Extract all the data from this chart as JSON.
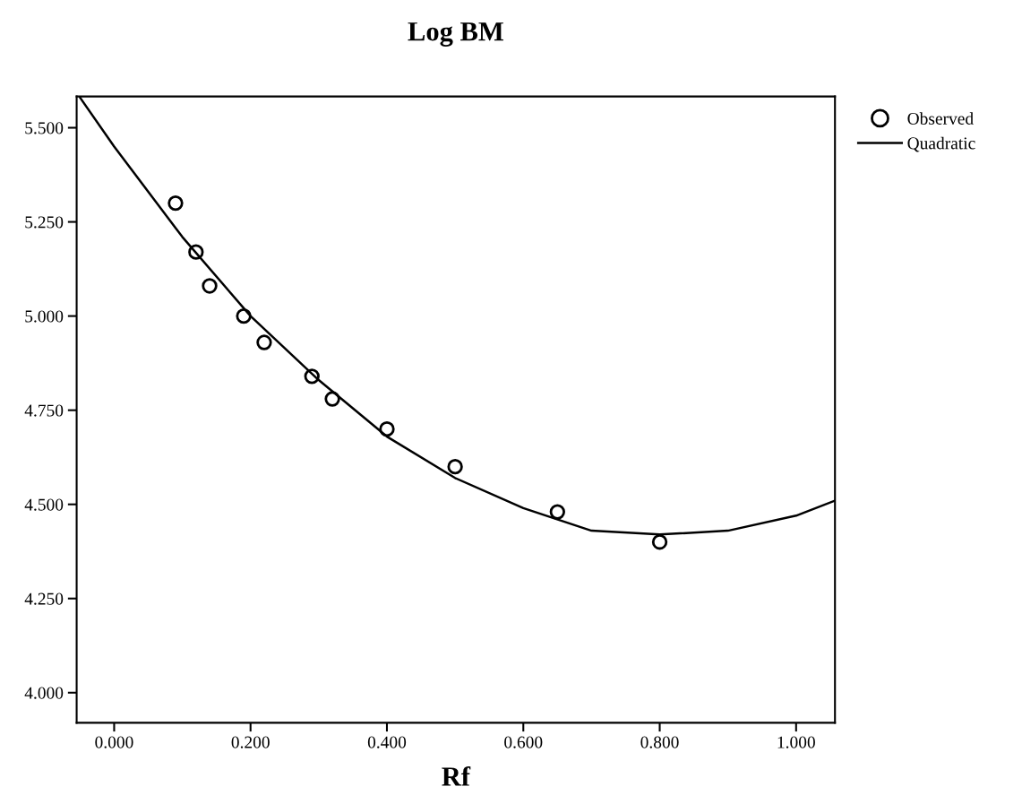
{
  "chart_data": {
    "type": "scatter",
    "title": "Log BM",
    "xlabel": "Rf",
    "series": [
      {
        "name": "Observed",
        "color": "#000000",
        "marker": "circle",
        "x": [
          0.09,
          0.12,
          0.14,
          0.19,
          0.22,
          0.29,
          0.32,
          0.4,
          0.5,
          0.65,
          0.8
        ],
        "values": [
          5.3,
          5.17,
          5.08,
          5.0,
          4.93,
          4.84,
          4.78,
          4.7,
          4.6,
          4.48,
          4.4
        ]
      },
      {
        "name": "Quadratic",
        "type": "line",
        "color": "#000000",
        "line_style": "solid",
        "x": [
          -0.05,
          0.0,
          0.1,
          0.2,
          0.3,
          0.4,
          0.5,
          0.6,
          0.7,
          0.8,
          0.9,
          1.0,
          1.057
        ],
        "values": [
          5.58,
          5.45,
          5.21,
          5.0,
          4.83,
          4.68,
          4.57,
          4.49,
          4.43,
          4.42,
          4.43,
          4.47,
          4.51
        ]
      }
    ],
    "xlim": [
      -0.055,
      1.057
    ],
    "ylim": [
      3.92,
      5.583
    ],
    "xticks": [
      {
        "value": 0,
        "label": "0.000"
      },
      {
        "value": 0.2,
        "label": "0.200"
      },
      {
        "value": 0.4,
        "label": "0.400"
      },
      {
        "value": 0.6,
        "label": "0.600"
      },
      {
        "value": 0.8,
        "label": "0.800"
      },
      {
        "value": 1.0,
        "label": "1.000"
      }
    ],
    "yticks": [
      {
        "value": 4.0,
        "label": "4.000"
      },
      {
        "value": 4.25,
        "label": "4.250"
      },
      {
        "value": 4.5,
        "label": "4.500"
      },
      {
        "value": 4.75,
        "label": "4.750"
      },
      {
        "value": 5.0,
        "label": "5.000"
      },
      {
        "value": 5.25,
        "label": "5.250"
      },
      {
        "value": 5.5,
        "label": "5.500"
      }
    ],
    "legend": "top right",
    "grid": false
  }
}
